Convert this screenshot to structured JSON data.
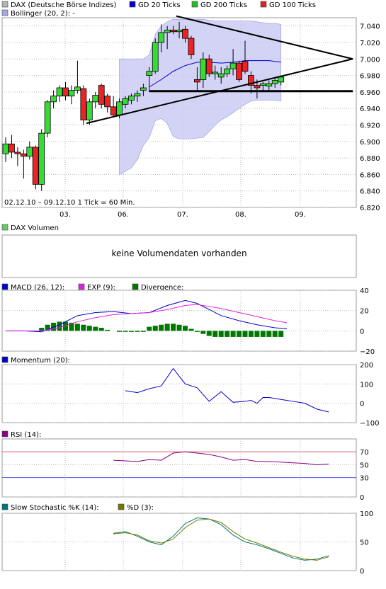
{
  "main": {
    "legend": [
      {
        "label": "DAX (Deutsche Börse Indizes)",
        "color": "#b4b4b4"
      },
      {
        "label": "GD 20 Ticks",
        "color": "#0000cc"
      },
      {
        "label": "GD 200 Ticks",
        "color": "#22bb22"
      },
      {
        "label": "GD 100 Ticks",
        "color": "#dd2222"
      }
    ],
    "legend2": {
      "label": "Bollinger (20, 2):",
      "value": "-",
      "color": "#a8a8e8"
    },
    "date_range": "02.12.10  –  09.12.10   1 Tick = 60 Min.",
    "x_labels": [
      "03.",
      "06.",
      "07.",
      "08.",
      "09."
    ],
    "y_labels": [
      "7.040",
      "7.020",
      "7.000",
      "6.980",
      "6.960",
      "6.940",
      "6.920",
      "6.900",
      "6.880",
      "6.860",
      "6.840",
      "6.820"
    ]
  },
  "volume": {
    "legend": "DAX Volumen",
    "legend_color": "#66cc66",
    "message": "keine Volumendaten vorhanden"
  },
  "macd": {
    "legend": [
      {
        "label": "MACD (26, 12):",
        "color": "#0000cc"
      },
      {
        "label": "EXP (9):",
        "color": "#dd22dd"
      },
      {
        "label": "Divergence:",
        "color": "#007700"
      }
    ],
    "y_labels": [
      "40",
      "20",
      "0",
      "−20"
    ]
  },
  "momentum": {
    "legend": "Momentum (20):",
    "legend_color": "#0000cc",
    "y_labels": [
      "200",
      "100",
      "0",
      "−100"
    ]
  },
  "rsi": {
    "legend": "RSI (14):",
    "legend_color": "#880088",
    "y_labels": [
      "70",
      "50",
      "30",
      "0"
    ]
  },
  "stoch": {
    "legend": [
      {
        "label": "Slow Stochastic %K (14):",
        "color": "#007777"
      },
      {
        "label": "%D (3):",
        "color": "#777700"
      }
    ],
    "y_labels": [
      "100",
      "50",
      "0"
    ]
  },
  "chart_data": [
    {
      "type": "candlestick",
      "title": "DAX (Deutsche Börse Indizes)",
      "ylim": [
        6820,
        7050
      ],
      "x_ticks": [
        "03.",
        "06.",
        "07.",
        "08.",
        "09."
      ],
      "candles": [
        {
          "o": 6885,
          "h": 6905,
          "l": 6875,
          "c": 6897
        },
        {
          "o": 6897,
          "h": 6908,
          "l": 6880,
          "c": 6887
        },
        {
          "o": 6887,
          "h": 6893,
          "l": 6870,
          "c": 6885
        },
        {
          "o": 6885,
          "h": 6890,
          "l": 6855,
          "c": 6882
        },
        {
          "o": 6882,
          "h": 6900,
          "l": 6878,
          "c": 6893
        },
        {
          "o": 6893,
          "h": 6895,
          "l": 6842,
          "c": 6848
        },
        {
          "o": 6848,
          "h": 6915,
          "l": 6840,
          "c": 6910
        },
        {
          "o": 6910,
          "h": 6950,
          "l": 6905,
          "c": 6948
        },
        {
          "o": 6948,
          "h": 6962,
          "l": 6940,
          "c": 6955
        },
        {
          "o": 6955,
          "h": 6968,
          "l": 6948,
          "c": 6965
        },
        {
          "o": 6965,
          "h": 6972,
          "l": 6950,
          "c": 6955
        },
        {
          "o": 6955,
          "h": 6968,
          "l": 6945,
          "c": 6962
        },
        {
          "o": 6962,
          "h": 6998,
          "l": 6958,
          "c": 6966
        },
        {
          "o": 6964,
          "h": 6968,
          "l": 6920,
          "c": 6926
        },
        {
          "o": 6926,
          "h": 6952,
          "l": 6920,
          "c": 6948
        },
        {
          "o": 6948,
          "h": 6960,
          "l": 6940,
          "c": 6956
        },
        {
          "o": 6968,
          "h": 6970,
          "l": 6940,
          "c": 6945
        },
        {
          "o": 6955,
          "h": 6958,
          "l": 6935,
          "c": 6942
        },
        {
          "o": 6942,
          "h": 6955,
          "l": 6930,
          "c": 6932
        },
        {
          "o": 6932,
          "h": 6952,
          "l": 6928,
          "c": 6948
        },
        {
          "o": 6945,
          "h": 6955,
          "l": 6940,
          "c": 6952
        },
        {
          "o": 6950,
          "h": 6958,
          "l": 6945,
          "c": 6955
        },
        {
          "o": 6955,
          "h": 6962,
          "l": 6948,
          "c": 6958
        },
        {
          "o": 6962,
          "h": 6970,
          "l": 6955,
          "c": 6965
        },
        {
          "o": 6980,
          "h": 6990,
          "l": 6960,
          "c": 6985
        },
        {
          "o": 6985,
          "h": 7025,
          "l": 6982,
          "c": 7020
        },
        {
          "o": 7020,
          "h": 7042,
          "l": 7008,
          "c": 7032
        },
        {
          "o": 7032,
          "h": 7040,
          "l": 7012,
          "c": 7035
        },
        {
          "o": 7035,
          "h": 7040,
          "l": 7030,
          "c": 7033
        },
        {
          "o": 7033,
          "h": 7045,
          "l": 7025,
          "c": 7035
        },
        {
          "o": 7036,
          "h": 7040,
          "l": 7020,
          "c": 7025
        },
        {
          "o": 7025,
          "h": 7028,
          "l": 7000,
          "c": 7005
        },
        {
          "o": 6975,
          "h": 6990,
          "l": 6962,
          "c": 6972
        },
        {
          "o": 6975,
          "h": 7008,
          "l": 6965,
          "c": 7000
        },
        {
          "o": 7000,
          "h": 7005,
          "l": 6978,
          "c": 6982
        },
        {
          "o": 6982,
          "h": 6992,
          "l": 6975,
          "c": 6984
        },
        {
          "o": 6978,
          "h": 6990,
          "l": 6970,
          "c": 6982
        },
        {
          "o": 6982,
          "h": 6992,
          "l": 6978,
          "c": 6988
        },
        {
          "o": 6988,
          "h": 7012,
          "l": 6980,
          "c": 6995
        },
        {
          "o": 6995,
          "h": 6998,
          "l": 6972,
          "c": 6975
        },
        {
          "o": 6997,
          "h": 7022,
          "l": 6982,
          "c": 6985
        },
        {
          "o": 6980,
          "h": 6985,
          "l": 6958,
          "c": 6968
        },
        {
          "o": 6968,
          "h": 6975,
          "l": 6952,
          "c": 6965
        },
        {
          "o": 6968,
          "h": 6972,
          "l": 6960,
          "c": 6970
        },
        {
          "o": 6967,
          "h": 6974,
          "l": 6962,
          "c": 6970
        },
        {
          "o": 6970,
          "h": 6977,
          "l": 6965,
          "c": 6974
        },
        {
          "o": 6972,
          "h": 6980,
          "l": 6968,
          "c": 6978
        }
      ],
      "sma20": [
        [
          24,
          6966
        ],
        [
          26,
          6975
        ],
        [
          28,
          6985
        ],
        [
          30,
          6992
        ],
        [
          32,
          6996
        ],
        [
          34,
          6996
        ],
        [
          36,
          6995
        ],
        [
          38,
          6996
        ],
        [
          40,
          6998
        ],
        [
          42,
          6998
        ],
        [
          44,
          6998
        ],
        [
          46,
          6996
        ]
      ],
      "bollinger": {
        "start_index": 19,
        "upper": [
          7000,
          7000,
          7000,
          7000,
          7000,
          7005,
          7030,
          7040,
          7045,
          7048,
          7048,
          7048,
          7048,
          7048,
          7048,
          7047,
          7046,
          7046,
          7046,
          7046,
          7046,
          7046,
          7046,
          7045,
          7044,
          7043,
          7043,
          7042
        ],
        "lower": [
          6860,
          6864,
          6868,
          6878,
          6895,
          6905,
          6925,
          6928,
          6922,
          6906,
          6903,
          6903,
          6903,
          6904,
          6905,
          6912,
          6920,
          6926,
          6930,
          6935,
          6940,
          6945,
          6949,
          6950,
          6950,
          6950,
          6950,
          6949
        ]
      },
      "trendlines": [
        {
          "from": [
            13.5,
            6922
          ],
          "to": [
            58,
            7000
          ]
        },
        {
          "from": [
            28.5,
            7052
          ],
          "to": [
            58,
            7000
          ]
        },
        {
          "from": [
            24,
            6961
          ],
          "to": [
            58,
            6961
          ]
        }
      ]
    },
    {
      "type": "line",
      "title": "MACD (26, 12)",
      "ylim": [
        -20,
        40
      ],
      "series": [
        {
          "name": "MACD (26, 12)",
          "x": [
            0,
            3,
            6,
            9,
            12,
            15,
            18,
            21,
            24,
            27,
            30,
            32,
            34,
            36,
            39,
            42,
            45,
            47
          ],
          "values": [
            0,
            0,
            -1,
            6,
            15,
            18,
            19,
            17,
            18,
            25,
            30,
            27,
            21,
            15,
            10,
            6,
            3,
            2
          ]
        },
        {
          "name": "EXP (9)",
          "x": [
            0,
            3,
            6,
            9,
            12,
            15,
            18,
            21,
            24,
            27,
            30,
            32,
            34,
            36,
            39,
            42,
            45,
            47
          ],
          "values": [
            0,
            0,
            0,
            3,
            9,
            13,
            16,
            17,
            18,
            21,
            25,
            26,
            24,
            22,
            18,
            14,
            10,
            8
          ]
        }
      ],
      "divergence": [
        0,
        0,
        0,
        0,
        0,
        0,
        3,
        6,
        8,
        9,
        9,
        8,
        7,
        6,
        5,
        4,
        3,
        1,
        0,
        -1,
        -1,
        -1,
        -1,
        -1,
        4,
        5,
        6,
        7,
        7,
        6,
        5,
        2,
        -1,
        -3,
        -5,
        -6,
        -6,
        -6,
        -6,
        -6,
        -6,
        -6,
        -6,
        -6,
        -6,
        -6,
        -6
      ]
    },
    {
      "type": "line",
      "title": "Momentum (20)",
      "ylim": [
        -100,
        200
      ],
      "series": [
        {
          "name": "Momentum (20)",
          "x": [
            20,
            22,
            24,
            26,
            28,
            30,
            31,
            32,
            34,
            36,
            38,
            40,
            41,
            42,
            43,
            44,
            46,
            48,
            50,
            52,
            54
          ],
          "values": [
            65,
            55,
            75,
            90,
            180,
            100,
            90,
            80,
            10,
            60,
            5,
            10,
            15,
            0,
            30,
            30,
            20,
            10,
            0,
            -30,
            -45
          ]
        }
      ]
    },
    {
      "type": "line",
      "title": "RSI (14)",
      "ylim": [
        0,
        90
      ],
      "reference_lines": [
        70,
        30
      ],
      "series": [
        {
          "name": "RSI (14)",
          "x": [
            18,
            20,
            22,
            24,
            26,
            28,
            30,
            32,
            34,
            36,
            38,
            40,
            42,
            44,
            46,
            48,
            50,
            52,
            54
          ],
          "values": [
            57,
            56,
            55,
            58,
            57,
            68,
            70,
            68,
            66,
            62,
            57,
            58,
            55,
            55,
            54,
            53,
            52,
            50,
            51
          ]
        }
      ]
    },
    {
      "type": "line",
      "title": "Slow Stochastic %K (14)",
      "ylim": [
        0,
        100
      ],
      "series": [
        {
          "name": "Slow Stochastic %K (14)",
          "x": [
            18,
            20,
            22,
            24,
            26,
            28,
            30,
            32,
            34,
            36,
            38,
            40,
            42,
            44,
            46,
            48,
            50,
            52,
            54
          ],
          "values": [
            65,
            68,
            60,
            50,
            45,
            60,
            82,
            92,
            90,
            80,
            62,
            50,
            45,
            38,
            30,
            22,
            18,
            20,
            26
          ]
        },
        {
          "name": "%D (3)",
          "x": [
            18,
            20,
            22,
            24,
            26,
            28,
            30,
            32,
            34,
            36,
            38,
            40,
            42,
            44,
            46,
            48,
            50,
            52,
            54
          ],
          "values": [
            64,
            66,
            62,
            52,
            48,
            55,
            75,
            88,
            90,
            84,
            68,
            55,
            48,
            40,
            32,
            25,
            20,
            18,
            24
          ]
        }
      ]
    }
  ]
}
